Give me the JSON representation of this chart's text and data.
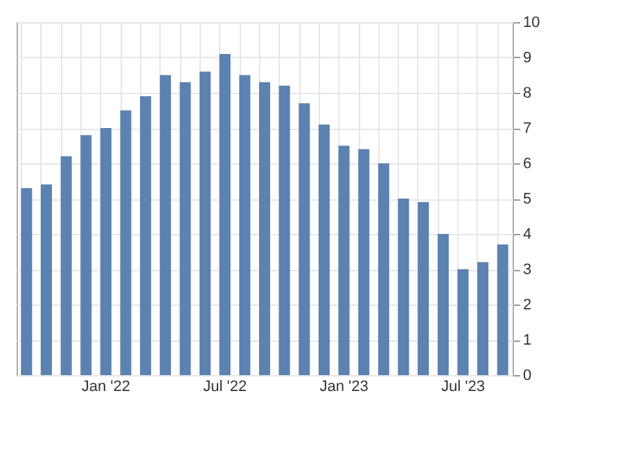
{
  "chart_data": {
    "type": "bar",
    "categories": [
      null,
      null,
      null,
      null,
      "Jan '22",
      null,
      null,
      null,
      null,
      null,
      "Jul '22",
      null,
      null,
      null,
      null,
      null,
      "Jan '23",
      null,
      null,
      null,
      null,
      null,
      "Jul '23",
      null,
      null
    ],
    "values": [
      5.3,
      5.4,
      6.2,
      6.8,
      7.0,
      7.5,
      7.9,
      8.5,
      8.3,
      8.6,
      9.1,
      8.5,
      8.3,
      8.2,
      7.7,
      7.1,
      6.5,
      6.4,
      6.0,
      5.0,
      4.9,
      4.0,
      3.0,
      3.2,
      3.7
    ],
    "color": "#5b82b0",
    "ylim": [
      0,
      10
    ],
    "yticks": [
      0,
      1,
      2,
      3,
      4,
      5,
      6,
      7,
      8,
      9,
      10
    ],
    "grid": true
  }
}
